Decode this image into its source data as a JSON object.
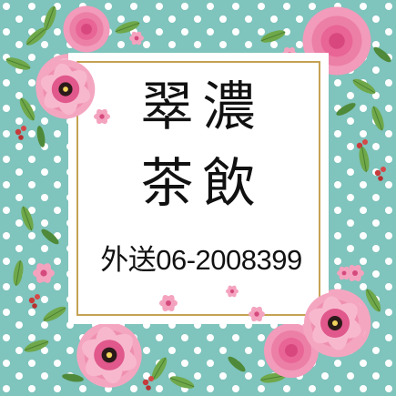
{
  "sign": {
    "title_line1": "翠濃",
    "title_line2": "茶飲",
    "phone": "外送06-2008399"
  },
  "colors": {
    "background_teal": "#7fc4bd",
    "polka_dot": "#ffffff",
    "frame_border": "#c5a253",
    "panel": "#ffffff",
    "flower_pink": "#ef8fb0",
    "flower_deep_pink": "#e0588c",
    "leaf_green": "#6fa84a",
    "berry_red": "#c73b3b"
  }
}
